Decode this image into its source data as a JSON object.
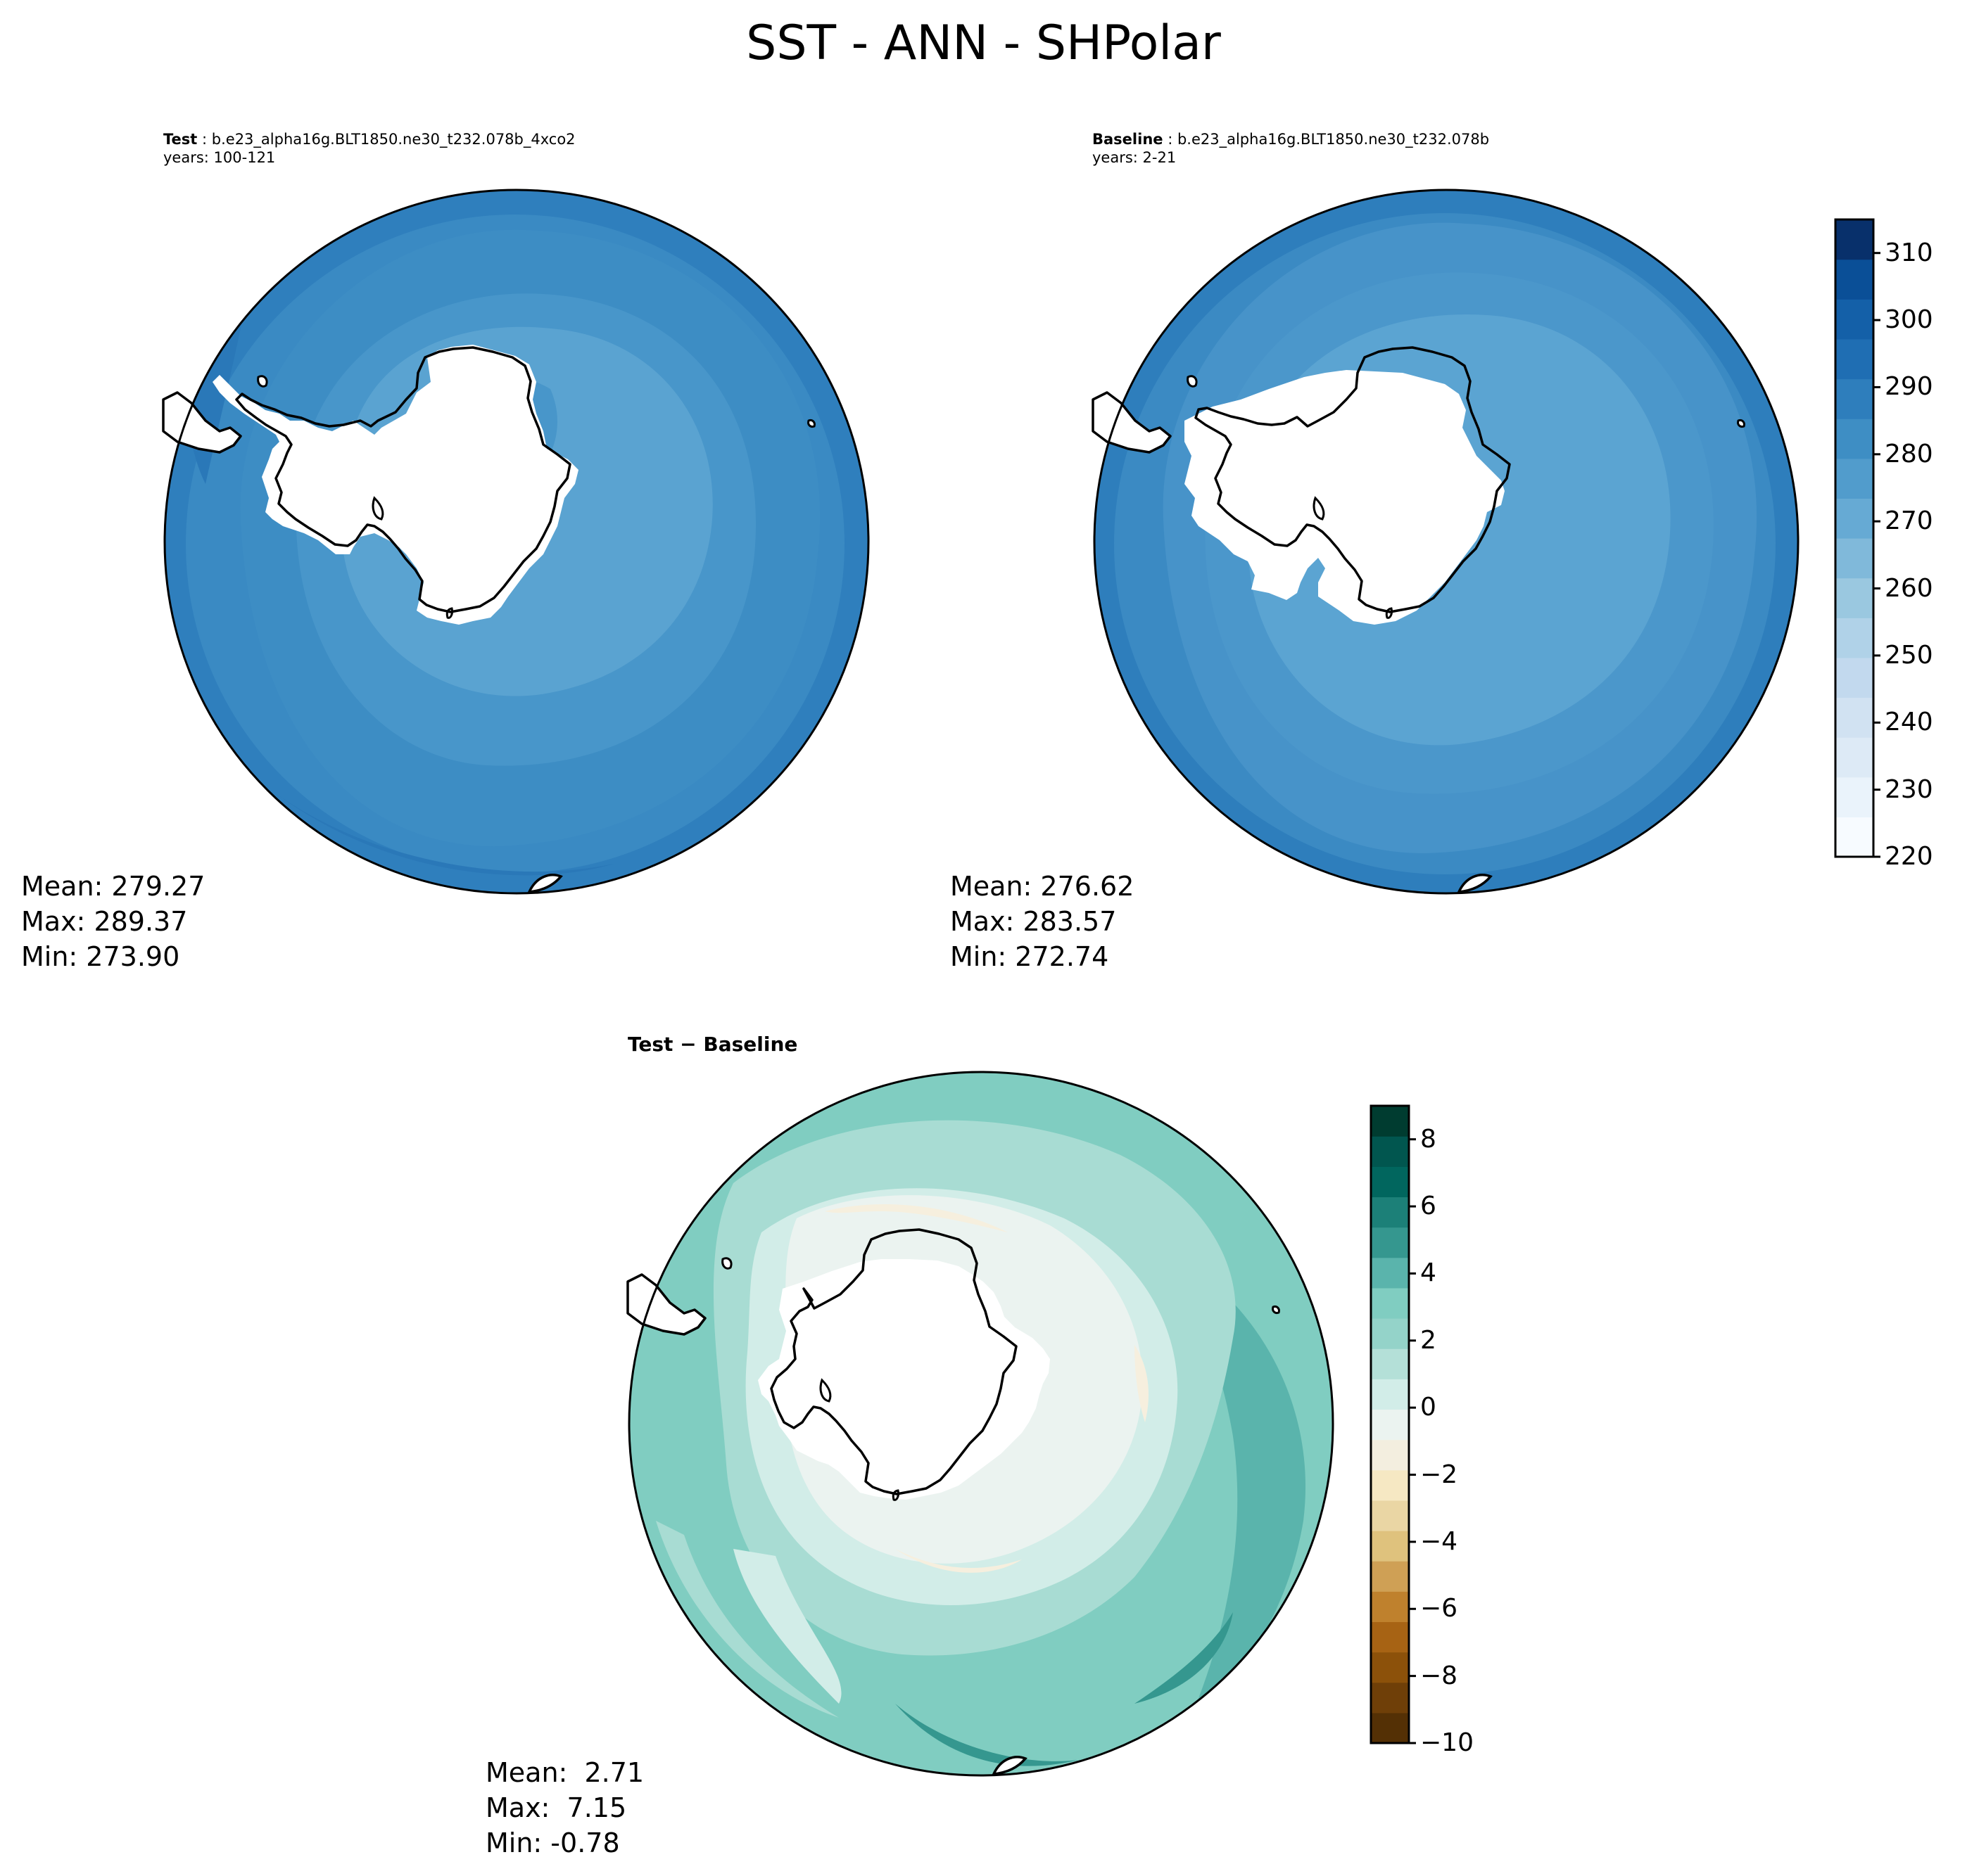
{
  "figure": {
    "title": "SST - ANN - SHPolar"
  },
  "panels": {
    "test": {
      "label_bold": "Test",
      "case": "b.e23_alpha16g.BLT1850.ne30_t232.078b_4xco2",
      "years": "years: 100-121",
      "stats": {
        "mean": "Mean: 279.27",
        "max": "Max: 289.37",
        "min": "Min: 273.90"
      }
    },
    "baseline": {
      "label_bold": "Baseline",
      "case": "b.e23_alpha16g.BLT1850.ne30_t232.078b",
      "years": "years: 2-21",
      "stats": {
        "mean": "Mean: 276.62",
        "max": "Max: 283.57",
        "min": "Min: 272.74"
      }
    },
    "diff": {
      "title": "Test − Baseline",
      "stats": {
        "mean": "Mean:  2.71",
        "max": "Max:  7.15",
        "min": "Min: -0.78"
      }
    }
  },
  "colorbars": {
    "abs": {
      "colormap": "Blues",
      "range": [
        220,
        315
      ],
      "ticks": [
        "220",
        "230",
        "240",
        "250",
        "260",
        "270",
        "280",
        "290",
        "300",
        "310"
      ],
      "colors": [
        "#f7fbff",
        "#eaf3fb",
        "#ddeaf6",
        "#d1e2f2",
        "#c2d9ee",
        "#b0d2e8",
        "#9ac8e0",
        "#80b9da",
        "#66aad4",
        "#519ccc",
        "#3e8ec4",
        "#2e7ebc",
        "#1f6eb3",
        "#1460a8",
        "#0a4f97",
        "#08306b"
      ]
    },
    "diff": {
      "colormap": "BrBG",
      "range": [
        -10,
        9
      ],
      "ticks": [
        "−10",
        "−8",
        "−6",
        "−4",
        "−2",
        "0",
        "2",
        "4",
        "6",
        "8"
      ],
      "colors": [
        "#543005",
        "#6f3f08",
        "#8c510a",
        "#a76314",
        "#bf812d",
        "#cfa055",
        "#dfc27d",
        "#ead6a4",
        "#f6e8c3",
        "#f3eedf",
        "#ebf3f0",
        "#d2ede8",
        "#b4e0d8",
        "#94d3c9",
        "#80cdc1",
        "#5ab4ac",
        "#35978f",
        "#1c8078",
        "#01665e",
        "#01564f",
        "#003c30"
      ]
    }
  },
  "fields": {
    "test_ocean_levels": [
      "#3d8dc4",
      "#4896ca",
      "#5aa3d1",
      "#2f7fbd"
    ],
    "baseline_ocean_levels": [
      "#3b8ac3",
      "#4b97cb",
      "#5ba4d2",
      "#2e7ebc"
    ],
    "diff_levels": [
      "#80cdc1",
      "#a8dcd3",
      "#d2ede8",
      "#ebf3f0",
      "#f6efde",
      "#5ab4ac",
      "#35978f"
    ]
  }
}
